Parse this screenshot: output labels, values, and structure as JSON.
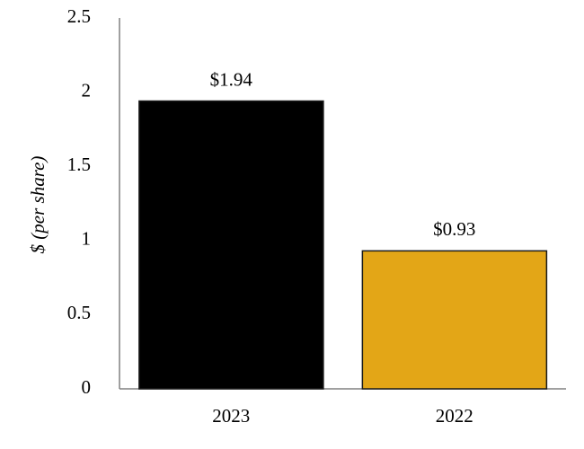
{
  "chart_data": {
    "type": "bar",
    "ylabel": "$ (per share)",
    "categories": [
      "2023",
      "2022"
    ],
    "values": [
      1.94,
      0.93
    ],
    "value_labels": [
      "$1.94",
      "$0.93"
    ],
    "colors": [
      "#000000",
      "#e3a617"
    ],
    "ylim": [
      0,
      2.5
    ],
    "yticks": [
      0,
      0.5,
      1,
      1.5,
      2,
      2.5
    ],
    "grid": false
  }
}
